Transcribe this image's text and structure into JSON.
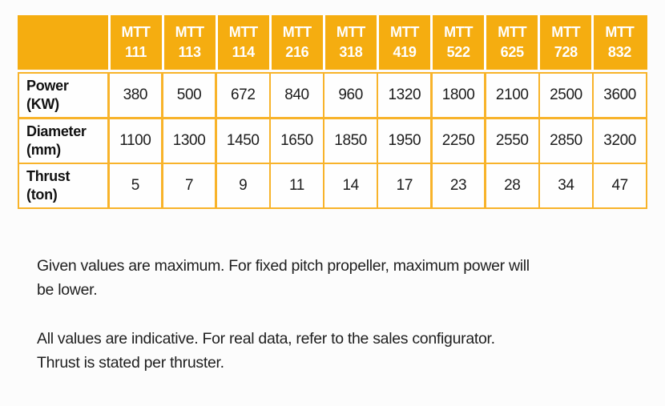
{
  "colors": {
    "page_bg": "#fcfcfc",
    "header_bg": "#f5ad10",
    "border": "#f8b32a",
    "cell_bg": "#fefefe",
    "label_color": "#121212",
    "value_color": "#1d1d1d",
    "note_color": "#1f1f1f"
  },
  "chart_data": {
    "type": "table",
    "column_headers": [
      "MTT 111",
      "MTT 113",
      "MTT 114",
      "MTT 216",
      "MTT 318",
      "MTT 419",
      "MTT 522",
      "MTT 625",
      "MTT 728",
      "MTT 832"
    ],
    "row_headers": [
      "Power (KW)",
      "Diameter (mm)",
      "Thrust (ton)"
    ],
    "values": [
      [
        380,
        500,
        672,
        840,
        960,
        1320,
        1800,
        2100,
        2500,
        3600
      ],
      [
        1100,
        1300,
        1450,
        1650,
        1850,
        1950,
        2250,
        2550,
        2850,
        3200
      ],
      [
        5,
        7,
        9,
        11,
        14,
        17,
        23,
        28,
        34,
        47
      ]
    ]
  },
  "notes": [
    {
      "text": "Given values are maximum. For fixed pitch propeller, maximum power will\nbe lower."
    },
    {
      "text": "All values are indicative. For real data, refer to the sales configurator.\nThrust is stated per thruster."
    }
  ]
}
